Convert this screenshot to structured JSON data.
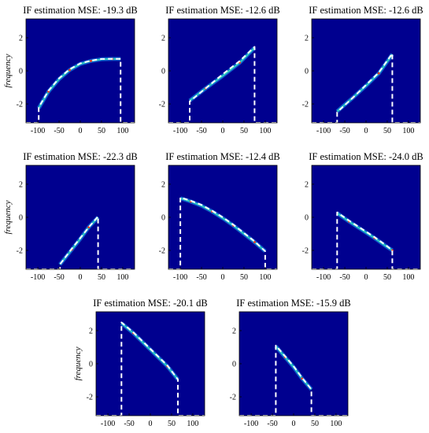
{
  "figure": {
    "background": "#ffffff",
    "plot_background": "#00008f",
    "estimate_colors": [
      "#19a3ff",
      "#36e0c0",
      "#ff3a1a"
    ],
    "ideal_line_color": "#ffffff",
    "ideal_line_style": "dashed"
  },
  "chart_data": [
    {
      "type": "line",
      "title": "IF estimation MSE: -19.3 dB",
      "xlabel": "",
      "ylabel": "frequency",
      "xlim": [
        -128,
        128
      ],
      "ylim": [
        -3.14,
        3.14
      ],
      "xticks": [
        -100,
        -50,
        0,
        50,
        100
      ],
      "xtick_labels": [
        "-100",
        "-50",
        "0",
        "50",
        "100"
      ],
      "yticks": [
        2,
        0,
        -2
      ],
      "ytick_labels": [
        "2",
        "0",
        "-2"
      ],
      "series": [
        {
          "role": "ideal",
          "x": [
            -128,
            -98,
            -98,
            -75,
            -50,
            -25,
            0,
            25,
            50,
            75,
            95,
            95,
            128
          ],
          "y": [
            -3.14,
            -3.14,
            -2.2,
            -1.2,
            -0.45,
            0.1,
            0.45,
            0.62,
            0.72,
            0.73,
            0.73,
            -3.14,
            -3.14
          ]
        },
        {
          "role": "estimate",
          "x": [
            -98,
            -75,
            -50,
            -25,
            0,
            25,
            50,
            75,
            95
          ],
          "y": [
            -2.25,
            -1.25,
            -0.5,
            0.05,
            0.42,
            0.6,
            0.7,
            0.72,
            0.72
          ]
        }
      ]
    },
    {
      "type": "line",
      "title": "IF estimation MSE: -12.6 dB",
      "xlabel": "",
      "ylabel": "",
      "xlim": [
        -128,
        128
      ],
      "ylim": [
        -3.14,
        3.14
      ],
      "xticks": [
        -100,
        -50,
        0,
        50,
        100
      ],
      "xtick_labels": [
        "-100",
        "-50",
        "0",
        "50",
        "100"
      ],
      "yticks": [
        2,
        0,
        -2
      ],
      "ytick_labels": [
        "2",
        "0",
        "-2"
      ],
      "series": [
        {
          "role": "ideal",
          "x": [
            -128,
            -78,
            -78,
            -40,
            0,
            40,
            75,
            75,
            128
          ],
          "y": [
            -3.14,
            -3.14,
            -1.85,
            -1.05,
            -0.2,
            0.6,
            1.45,
            -3.14,
            -3.14
          ]
        },
        {
          "role": "estimate",
          "x": [
            -78,
            -40,
            0,
            40,
            75
          ],
          "y": [
            -1.8,
            -1.05,
            -0.3,
            0.5,
            1.4
          ]
        }
      ]
    },
    {
      "type": "line",
      "title": "IF estimation MSE: -12.6 dB",
      "xlabel": "",
      "ylabel": "",
      "xlim": [
        -128,
        128
      ],
      "ylim": [
        -3.14,
        3.14
      ],
      "xticks": [
        -100,
        -50,
        0,
        50,
        100
      ],
      "xtick_labels": [
        "-100",
        "-50",
        "0",
        "50",
        "100"
      ],
      "yticks": [
        2,
        0,
        -2
      ],
      "ytick_labels": [
        "2",
        "0",
        "-2"
      ],
      "series": [
        {
          "role": "ideal",
          "x": [
            -128,
            -68,
            -68,
            -30,
            0,
            30,
            62,
            62,
            128
          ],
          "y": [
            -3.14,
            -3.14,
            -2.5,
            -1.6,
            -0.85,
            -0.1,
            1.05,
            -3.14,
            -3.14
          ]
        },
        {
          "role": "estimate",
          "x": [
            -68,
            -30,
            0,
            30,
            62
          ],
          "y": [
            -2.45,
            -1.6,
            -0.9,
            -0.15,
            1.0
          ]
        }
      ]
    },
    {
      "type": "line",
      "title": "IF estimation MSE: -22.3 dB",
      "xlabel": "",
      "ylabel": "frequency",
      "xlim": [
        -128,
        128
      ],
      "ylim": [
        -3.14,
        3.14
      ],
      "xticks": [
        -100,
        -50,
        0,
        50,
        100
      ],
      "xtick_labels": [
        "-100",
        "-50",
        "0",
        "50",
        "100"
      ],
      "yticks": [
        2,
        0,
        -2
      ],
      "ytick_labels": [
        "2",
        "0",
        "-2"
      ],
      "series": [
        {
          "role": "ideal",
          "x": [
            -128,
            -48,
            -48,
            -20,
            0,
            20,
            42,
            42,
            128
          ],
          "y": [
            -3.14,
            -3.14,
            -2.85,
            -1.9,
            -1.25,
            -0.6,
            0.05,
            -3.14,
            -3.14
          ]
        },
        {
          "role": "estimate",
          "x": [
            -48,
            -20,
            0,
            20,
            42
          ],
          "y": [
            -2.85,
            -1.95,
            -1.3,
            -0.6,
            0.0
          ]
        }
      ]
    },
    {
      "type": "line",
      "title": "IF estimation MSE: -12.4 dB",
      "xlabel": "",
      "ylabel": "",
      "xlim": [
        -128,
        128
      ],
      "ylim": [
        -3.14,
        3.14
      ],
      "xticks": [
        -100,
        -50,
        0,
        50,
        100
      ],
      "xtick_labels": [
        "-100",
        "-50",
        "0",
        "50",
        "100"
      ],
      "yticks": [
        2,
        0,
        -2
      ],
      "ytick_labels": [
        "2",
        "0",
        "-2"
      ],
      "series": [
        {
          "role": "ideal",
          "x": [
            -128,
            -100,
            -100,
            -75,
            -50,
            -25,
            0,
            25,
            50,
            75,
            100,
            100,
            128
          ],
          "y": [
            -3.14,
            -3.14,
            1.2,
            1.0,
            0.75,
            0.4,
            0.0,
            -0.45,
            -0.95,
            -1.45,
            -2.05,
            -3.14,
            -3.14
          ]
        },
        {
          "role": "estimate",
          "x": [
            -100,
            -75,
            -50,
            -25,
            0,
            25,
            50,
            75,
            100
          ],
          "y": [
            1.15,
            0.95,
            0.7,
            0.35,
            -0.05,
            -0.5,
            -1.0,
            -1.5,
            -2.05
          ]
        }
      ]
    },
    {
      "type": "line",
      "title": "IF estimation MSE: -24.0 dB",
      "xlabel": "",
      "ylabel": "",
      "xlim": [
        -128,
        128
      ],
      "ylim": [
        -3.14,
        3.14
      ],
      "xticks": [
        -100,
        -50,
        0,
        50,
        100
      ],
      "xtick_labels": [
        "-100",
        "-50",
        "0",
        "50",
        "100"
      ],
      "yticks": [
        2,
        0,
        -2
      ],
      "ytick_labels": [
        "2",
        "0",
        "-2"
      ],
      "series": [
        {
          "role": "ideal",
          "x": [
            -128,
            -68,
            -68,
            -40,
            -10,
            20,
            50,
            62,
            62,
            128
          ],
          "y": [
            -3.14,
            -3.14,
            0.3,
            -0.2,
            -0.7,
            -1.2,
            -1.75,
            -2.0,
            -3.14,
            -3.14
          ]
        },
        {
          "role": "estimate",
          "x": [
            -68,
            -40,
            -10,
            20,
            50,
            62
          ],
          "y": [
            0.25,
            -0.25,
            -0.75,
            -1.25,
            -1.8,
            -2.0
          ]
        }
      ]
    },
    {
      "type": "line",
      "title": "IF estimation MSE: -20.1 dB",
      "xlabel": "",
      "ylabel": "frequency",
      "xlim": [
        -128,
        128
      ],
      "ylim": [
        -3.14,
        3.14
      ],
      "xticks": [
        -100,
        -50,
        0,
        50,
        100
      ],
      "xtick_labels": [
        "-100",
        "-50",
        "0",
        "50",
        "100"
      ],
      "yticks": [
        2,
        0,
        -2
      ],
      "ytick_labels": [
        "2",
        "0",
        "-2"
      ],
      "series": [
        {
          "role": "ideal",
          "x": [
            -128,
            -68,
            -68,
            -40,
            0,
            40,
            65,
            65,
            128
          ],
          "y": [
            -3.14,
            -3.14,
            2.5,
            1.9,
            0.9,
            -0.1,
            -0.95,
            -3.14,
            -3.14
          ]
        },
        {
          "role": "estimate",
          "x": [
            -68,
            -40,
            0,
            40,
            65
          ],
          "y": [
            2.45,
            1.85,
            0.85,
            -0.15,
            -0.95
          ]
        }
      ]
    },
    {
      "type": "line",
      "title": "IF estimation MSE: -15.9 dB",
      "xlabel": "",
      "ylabel": "",
      "xlim": [
        -128,
        128
      ],
      "ylim": [
        -3.14,
        3.14
      ],
      "xticks": [
        -100,
        -50,
        0,
        50,
        100
      ],
      "xtick_labels": [
        "-100",
        "-50",
        "0",
        "50",
        "100"
      ],
      "yticks": [
        2,
        0,
        -2
      ],
      "ytick_labels": [
        "2",
        "0",
        "-2"
      ],
      "series": [
        {
          "role": "ideal",
          "x": [
            -128,
            -42,
            -42,
            -20,
            0,
            20,
            42,
            42,
            128
          ],
          "y": [
            -3.14,
            -3.14,
            1.1,
            0.45,
            -0.15,
            -0.85,
            -1.55,
            -3.14,
            -3.14
          ]
        },
        {
          "role": "estimate",
          "x": [
            -42,
            -20,
            0,
            20,
            42
          ],
          "y": [
            1.05,
            0.4,
            -0.2,
            -0.9,
            -1.55
          ]
        }
      ]
    }
  ]
}
